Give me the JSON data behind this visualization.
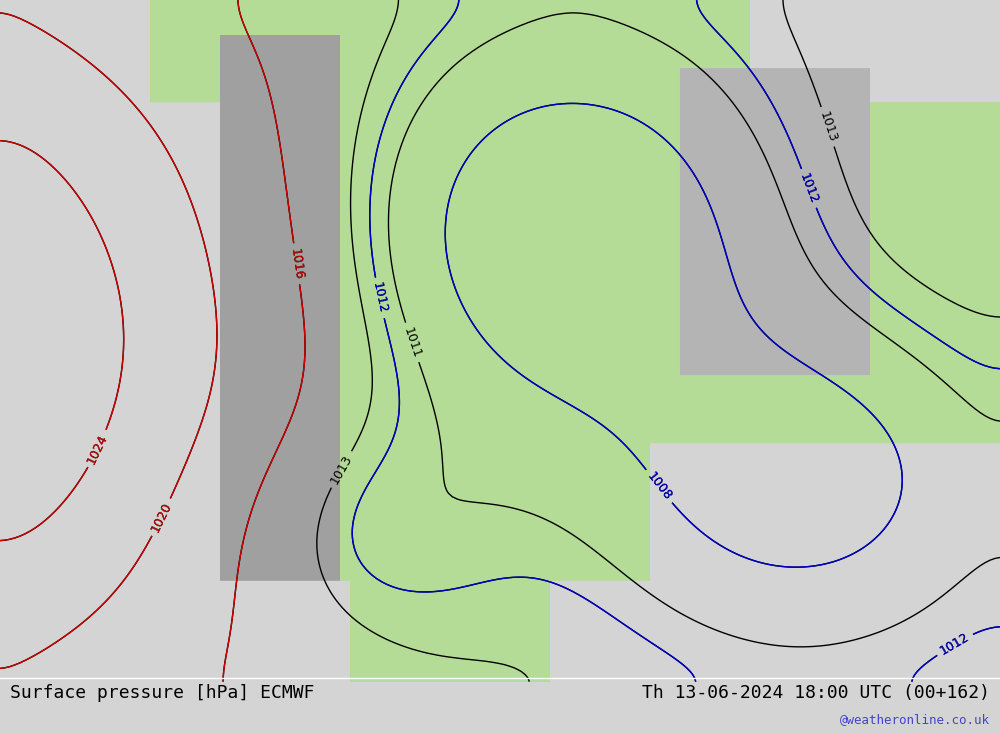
{
  "title_left": "Surface pressure [hPa] ECMWF",
  "title_right": "Th 13-06-2024 18:00 UTC (00+162)",
  "watermark": "@weatheronline.co.uk",
  "bg_ocean": "#d4d4d4",
  "bg_land_low": "#c8e6c0",
  "bg_land_high": "#b0b0b0",
  "contour_black": "#000000",
  "contour_red": "#cc0000",
  "contour_blue": "#0000cc",
  "label_fontsize": 9,
  "title_fontsize": 13,
  "watermark_color": "#4444cc",
  "fig_width": 10.0,
  "fig_height": 7.33,
  "dpi": 100
}
